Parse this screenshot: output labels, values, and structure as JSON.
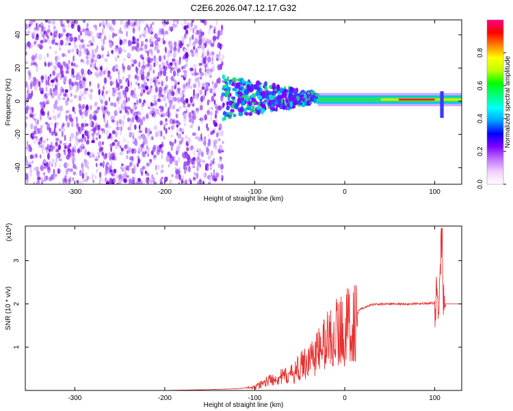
{
  "title": "C2E6.2026.047.12.17.G32",
  "chart_data": [
    {
      "type": "heatmap",
      "xlabel": "Height of straight line (km)",
      "ylabel": "Frequency (Hz)",
      "xlim": [
        -355,
        130
      ],
      "ylim": [
        -50,
        49
      ],
      "x_ticks": [
        -300,
        -200,
        -100,
        0,
        100
      ],
      "y_ticks": [
        -40,
        -20,
        0,
        20,
        40
      ],
      "colorbar": {
        "label": "Normalized spectral amplitude",
        "range": [
          0,
          1
        ],
        "ticks": [
          "0.0",
          "0.2",
          "0.4",
          "0.6",
          "0.8"
        ],
        "colors": [
          "#ffffff",
          "#f0d0ff",
          "#c070ff",
          "#8000ff",
          "#0000ff",
          "#00a0ff",
          "#00ffff",
          "#00ff80",
          "#00ff00",
          "#c0ff00",
          "#ffff00",
          "#ff8000",
          "#ff0000",
          "#ff0080"
        ]
      },
      "features": [
        {
          "description_x_range": [
            -355,
            -135
          ],
          "freq_range": [
            -50,
            49
          ],
          "amplitude": 0.15
        },
        {
          "description_x_range": [
            -135,
            -30
          ],
          "freq_range": [
            -12,
            12
          ],
          "amplitude": 0.45
        },
        {
          "description_x_range": [
            -30,
            130
          ],
          "freq_range": [
            -2,
            3
          ],
          "amplitude": 0.9
        }
      ]
    },
    {
      "type": "line",
      "xlabel": "Height of straight line (km)",
      "ylabel": "SNR (10 * v/v)",
      "y_scale_label": "(x10",
      "y_scale_exp": "4",
      "xlim": [
        -355,
        130
      ],
      "ylim": [
        0,
        3.8
      ],
      "x_ticks": [
        -300,
        -200,
        -100,
        0,
        100
      ],
      "y_ticks": [
        1,
        2,
        3
      ],
      "series": [
        {
          "color": "#e83030",
          "x": [
            -355,
            -300,
            -250,
            -200,
            -150,
            -120,
            -100,
            -90,
            -80,
            -70,
            -60,
            -50,
            -40,
            -30,
            -20,
            -10,
            0,
            10,
            20,
            30,
            40,
            60,
            80,
            100,
            105,
            108,
            110,
            115,
            130
          ],
          "y": [
            0.0,
            0.0,
            0.0,
            0.0,
            0.02,
            0.04,
            0.08,
            0.2,
            0.3,
            0.35,
            0.4,
            0.6,
            0.8,
            1.0,
            1.3,
            1.5,
            1.6,
            1.8,
            1.9,
            1.98,
            2.0,
            2.0,
            2.0,
            2.02,
            2.1,
            3.7,
            2.0,
            2.0,
            2.0
          ]
        }
      ]
    }
  ]
}
